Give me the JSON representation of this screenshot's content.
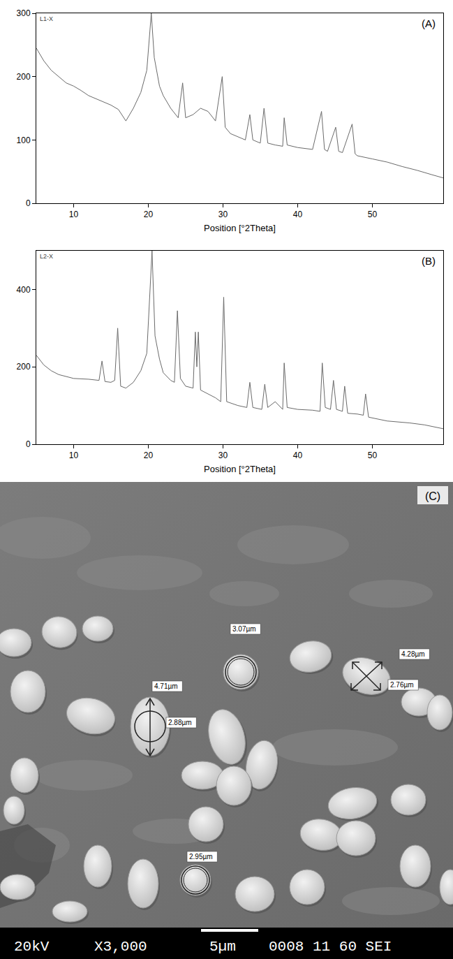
{
  "chart_data": [
    {
      "type": "line",
      "annotations": [
        "L1-X",
        "(A)"
      ],
      "x_label": "Position [°2Theta]",
      "color": "#6a6a6a",
      "grid": false,
      "x": [
        5,
        6,
        7,
        8,
        9,
        10,
        11,
        12,
        13,
        14,
        15,
        16,
        17,
        17.5,
        18,
        19,
        19.8,
        20.4,
        20.8,
        21.5,
        22,
        23,
        24,
        24.6,
        25,
        26,
        27,
        28,
        29,
        29.9,
        30.3,
        31,
        32,
        33,
        33.6,
        34,
        35,
        35.5,
        36,
        37,
        38,
        38.2,
        38.6,
        40,
        42,
        43.2,
        43.6,
        44,
        45.1,
        45.5,
        46,
        47.3,
        47.7,
        48,
        50,
        52,
        54,
        56,
        58,
        59.5
      ],
      "values": [
        245,
        225,
        210,
        200,
        190,
        185,
        178,
        170,
        165,
        160,
        155,
        148,
        130,
        140,
        150,
        175,
        210,
        300,
        230,
        185,
        170,
        150,
        135,
        190,
        135,
        140,
        150,
        145,
        130,
        200,
        120,
        110,
        105,
        100,
        140,
        100,
        95,
        150,
        95,
        92,
        90,
        135,
        92,
        88,
        85,
        145,
        85,
        82,
        120,
        82,
        80,
        125,
        78,
        75,
        70,
        65,
        58,
        52,
        45,
        40
      ],
      "xlim": [
        5,
        59.5
      ],
      "xticks": [
        10,
        20,
        30,
        40,
        50
      ],
      "ylim": [
        0,
        300
      ],
      "yticks": [
        0,
        100,
        200,
        300
      ]
    },
    {
      "type": "line",
      "annotations": [
        "L2-X",
        "(B)"
      ],
      "x_label": "Position [°2Theta]",
      "color": "#6a6a6a",
      "grid": false,
      "x": [
        5,
        6,
        7,
        8,
        10,
        12,
        13.4,
        13.8,
        14.2,
        15,
        15.5,
        15.9,
        16.3,
        17,
        18,
        19,
        19.8,
        20.5,
        20.9,
        21.5,
        22,
        23,
        23.5,
        23.9,
        24.3,
        25,
        26,
        26.3,
        26.5,
        26.7,
        27,
        28,
        29,
        29.7,
        30.1,
        30.5,
        32,
        33.2,
        33.6,
        34,
        35.2,
        35.6,
        36,
        37,
        37.5,
        38,
        38.2,
        38.6,
        40,
        42,
        43,
        43.3,
        43.7,
        44.4,
        44.8,
        45.2,
        46,
        46.3,
        46.7,
        48,
        48.8,
        49.1,
        49.5,
        52,
        55,
        57,
        59.5
      ],
      "values": [
        230,
        205,
        190,
        180,
        170,
        168,
        165,
        215,
        162,
        160,
        165,
        300,
        150,
        145,
        160,
        190,
        235,
        500,
        280,
        220,
        185,
        165,
        160,
        345,
        170,
        150,
        145,
        290,
        200,
        290,
        140,
        130,
        120,
        110,
        380,
        110,
        100,
        95,
        160,
        95,
        90,
        155,
        95,
        110,
        100,
        90,
        210,
        95,
        90,
        88,
        85,
        210,
        95,
        90,
        165,
        90,
        85,
        150,
        80,
        78,
        75,
        130,
        70,
        60,
        55,
        50,
        40
      ],
      "xlim": [
        5,
        59.5
      ],
      "xticks": [
        10,
        20,
        30,
        40,
        50
      ],
      "ylim": [
        0,
        500
      ],
      "yticks": [
        0,
        200,
        400
      ]
    }
  ],
  "image": {
    "panel": "(C)",
    "measurements": [
      "3.07µm",
      "4.28µm",
      "2.76µm",
      "4.71µm",
      "2.88µm",
      "2.95µm"
    ],
    "info_bar": [
      "20kV",
      "X3,000",
      "5µm",
      "0008 11 60 SEI"
    ]
  }
}
